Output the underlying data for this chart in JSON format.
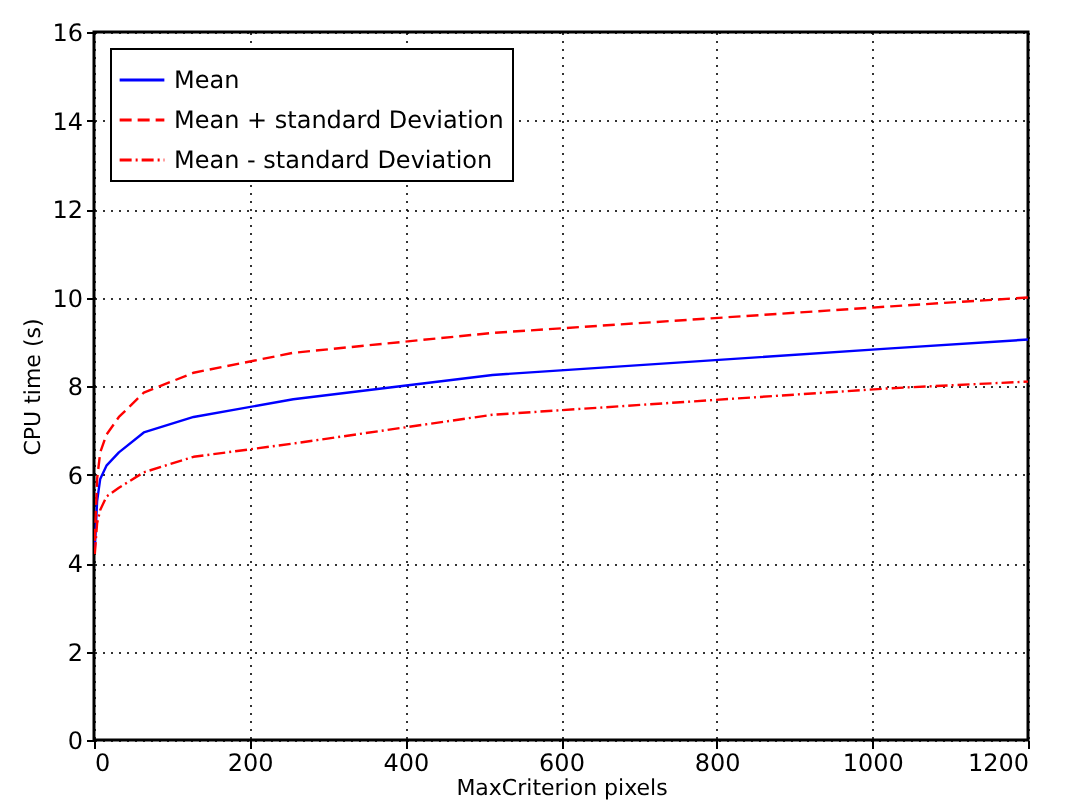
{
  "chart_data": {
    "type": "line",
    "xlabel": "MaxCriterion pixels",
    "ylabel": "CPU time (s)",
    "x": [
      1,
      4,
      8,
      16,
      32,
      64,
      128,
      256,
      512,
      1024,
      1200
    ],
    "series": [
      {
        "name": "Mean",
        "color": "#0000ff",
        "line_style": "solid",
        "values": [
          4.3,
          5.4,
          5.9,
          6.2,
          6.5,
          6.95,
          7.3,
          7.7,
          8.25,
          8.85,
          9.05
        ]
      },
      {
        "name": "Mean + standard Deviation",
        "color": "#ff0000",
        "line_style": "dashed",
        "values": [
          4.5,
          5.9,
          6.5,
          6.9,
          7.3,
          7.85,
          8.3,
          8.75,
          9.2,
          9.8,
          10.0
        ]
      },
      {
        "name": "Mean - standard Deviation",
        "color": "#ff0000",
        "line_style": "dotted",
        "values": [
          4.2,
          4.9,
          5.2,
          5.5,
          5.7,
          6.05,
          6.4,
          6.7,
          7.35,
          7.95,
          8.1
        ]
      }
    ],
    "xlim": [
      0,
      1200
    ],
    "xticks": [
      0,
      200,
      400,
      600,
      800,
      1000,
      1200
    ],
    "ylim": [
      0,
      16
    ],
    "yticks": [
      0,
      2,
      4,
      6,
      8,
      10,
      12,
      14,
      16
    ],
    "grid": true,
    "legend": "top left",
    "marker": "none"
  }
}
